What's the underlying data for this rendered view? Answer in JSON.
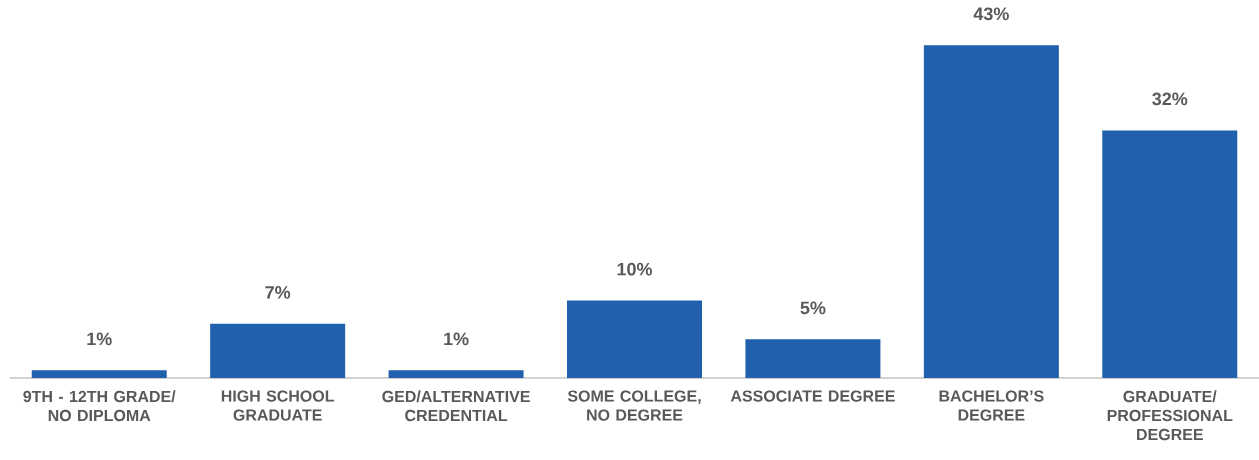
{
  "chart_data": {
    "type": "bar",
    "categories": [
      "9TH - 12TH GRADE/ NO DIPLOMA",
      "HIGH SCHOOL GRADUATE",
      "GED/ALTERNATIVE CREDENTIAL",
      "SOME COLLEGE, NO DEGREE",
      "ASSOCIATE DEGREE",
      "BACHELOR’S DEGREE",
      "GRADUATE/ PROFESSIONAL DEGREE"
    ],
    "values": [
      1,
      7,
      1,
      10,
      5,
      43,
      32
    ],
    "value_labels": [
      "1%",
      "7%",
      "1%",
      "10%",
      "5%",
      "43%",
      "32%"
    ],
    "color": "#2160ac"
  }
}
